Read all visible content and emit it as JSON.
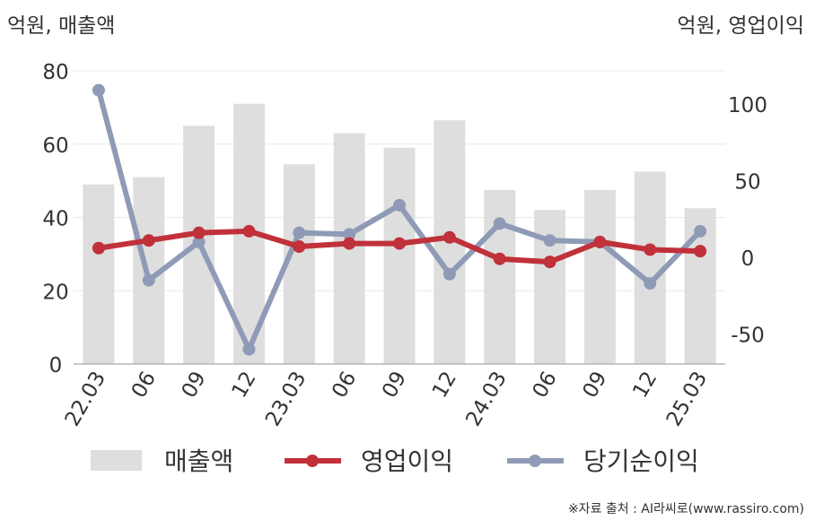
{
  "chart_data": {
    "type": "bar",
    "categories": [
      "22.03",
      "06",
      "09",
      "12",
      "23.03",
      "06",
      "09",
      "12",
      "24.03",
      "06",
      "09",
      "12",
      "25.03"
    ],
    "left_axis_label": "억원, 매출액",
    "right_axis_label": "억원, 영업이익",
    "left_ylim": [
      0,
      80
    ],
    "left_ticks": [
      0,
      20,
      40,
      60,
      80
    ],
    "right_ylim": [
      -70,
      125
    ],
    "right_ticks": [
      -50,
      0,
      50,
      100
    ],
    "grid": true,
    "legend_position": "bottom",
    "series": [
      {
        "name": "매출액",
        "type": "bar",
        "axis": "left",
        "color": "#dedede",
        "values": [
          49,
          51,
          65,
          71,
          54.5,
          63,
          59,
          66.5,
          47.5,
          42,
          47.5,
          52.5,
          42.5
        ]
      },
      {
        "name": "영업이익",
        "type": "line",
        "axis": "right",
        "color": "#c0313a",
        "values": [
          6,
          11,
          16,
          17,
          7,
          9,
          9,
          13,
          -1,
          -3,
          10,
          5,
          4
        ]
      },
      {
        "name": "당기순이익",
        "type": "line",
        "axis": "right",
        "color": "#8f9bb6",
        "values": [
          109,
          -15,
          10,
          -60,
          16,
          15,
          34,
          -11,
          22,
          11,
          10,
          -17,
          17
        ]
      }
    ]
  },
  "source": "※자료 출처 : AI라씨로(www.rassiro.com)"
}
